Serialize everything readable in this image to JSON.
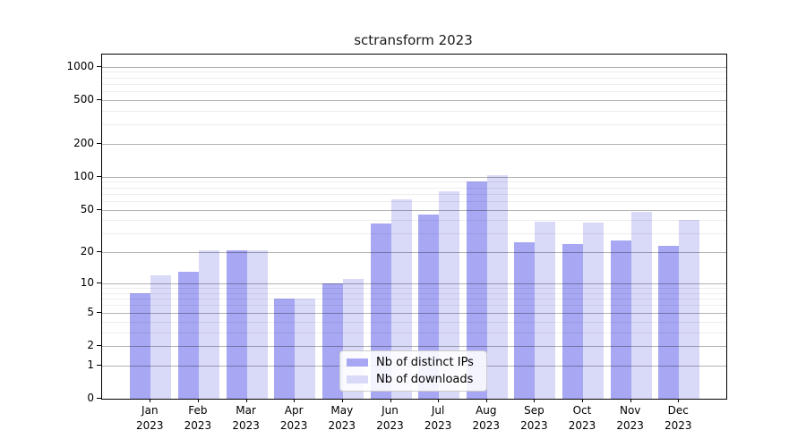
{
  "title": "sctransform 2023",
  "chart_data": {
    "type": "bar",
    "title": "sctransform 2023",
    "xlabel": "",
    "ylabel": "",
    "yscale": "log1p",
    "ylim": [
      0,
      1290
    ],
    "grid": true,
    "legend_position": "lower center",
    "categories": [
      "Jan",
      "Feb",
      "Mar",
      "Apr",
      "May",
      "Jun",
      "Jul",
      "Aug",
      "Sep",
      "Oct",
      "Nov",
      "Dec"
    ],
    "year": "2023",
    "y_ticks": [
      0,
      1,
      2,
      5,
      10,
      20,
      50,
      100,
      200,
      500,
      1000
    ],
    "y_minor_gridlines": [
      3,
      4,
      6,
      7,
      8,
      9,
      30,
      40,
      60,
      70,
      80,
      90,
      300,
      400,
      600,
      700,
      800,
      900
    ],
    "series": [
      {
        "name": "Nb of distinct IPs",
        "color": "#a7a7f3",
        "values": [
          8,
          13,
          21,
          7,
          10,
          37,
          45,
          90,
          25,
          24,
          26,
          23
        ]
      },
      {
        "name": "Nb of downloads",
        "color": "#d9d9f8",
        "values": [
          12,
          21,
          21,
          7,
          11,
          62,
          74,
          103,
          39,
          38,
          48,
          40
        ]
      }
    ]
  }
}
